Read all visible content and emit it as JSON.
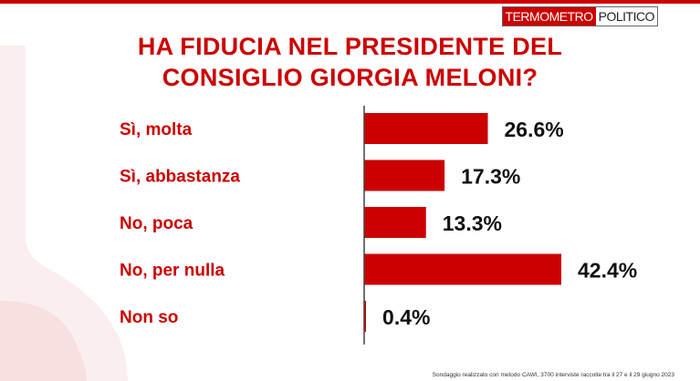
{
  "colors": {
    "accent": "#cc0000",
    "title": "#cc0000",
    "text": "#111111",
    "watermark": "#fbeaea"
  },
  "logo": {
    "part1": "TERMOMETRO",
    "part2": "POLITICO"
  },
  "title": {
    "line1": "HA FIDUCIA NEL PRESIDENTE DEL",
    "line2": "CONSIGLIO GIORGIA MELONI?"
  },
  "chart_data": {
    "type": "bar",
    "orientation": "horizontal",
    "categories": [
      "Sì, molta",
      "Sì, abbastanza",
      "No, poca",
      "No, per nulla",
      "Non so"
    ],
    "values": [
      26.6,
      17.3,
      13.3,
      42.4,
      0.4
    ],
    "value_labels": [
      "26.6%",
      "17.3%",
      "13.3%",
      "42.4%",
      "0.4%"
    ],
    "unit": "%",
    "xlim": [
      0,
      100
    ],
    "grid": false,
    "legend": "none"
  },
  "footnote": "Sondaggio realizzato con metodo CAWI, 3700 interviste raccolte tra il 27 e il 29 giugno 2023"
}
